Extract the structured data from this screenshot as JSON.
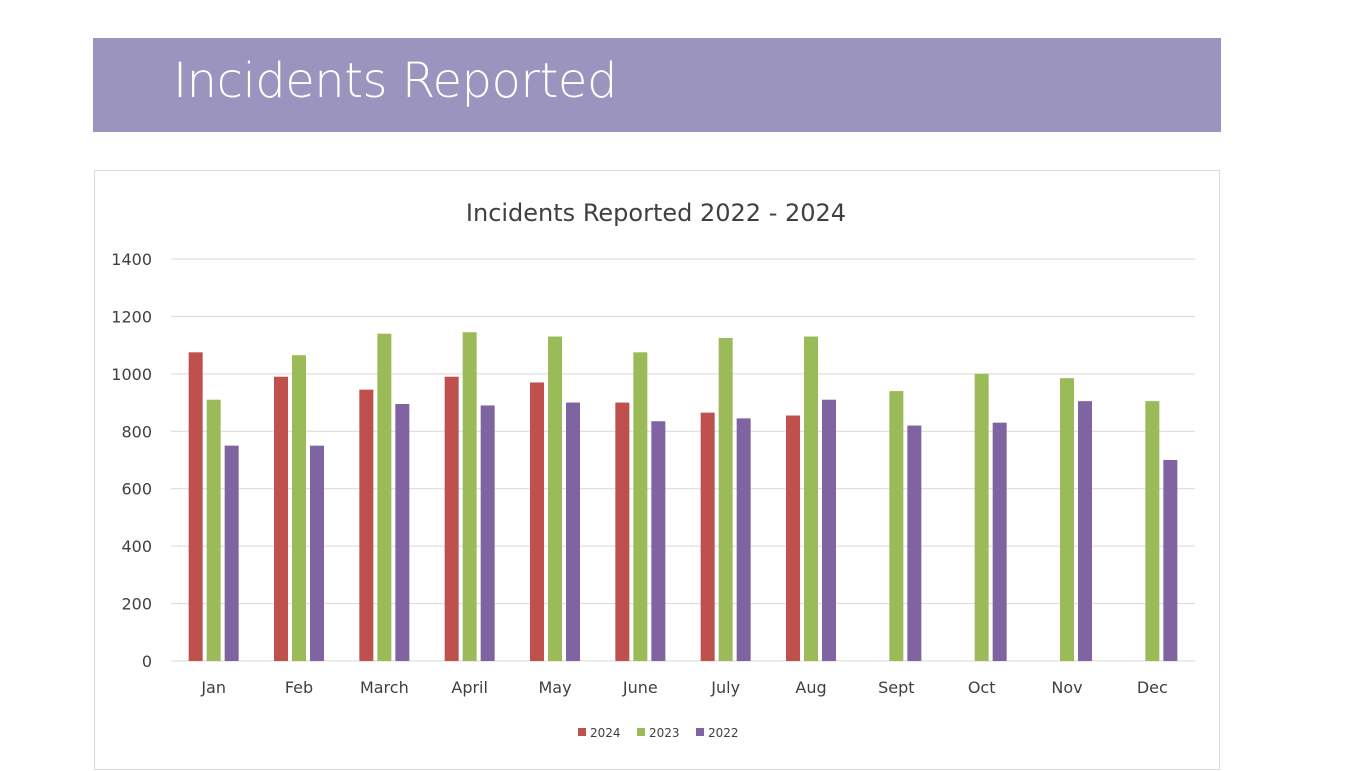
{
  "header": {
    "title": "Incidents Reported"
  },
  "colors": {
    "banner": "#9b94bf",
    "s2024": "#c0504d",
    "s2023": "#9bbb59",
    "s2022": "#8064a2",
    "grid": "#d9d9d9"
  },
  "chart_data": {
    "type": "bar",
    "title": "Incidents Reported 2022 - 2024",
    "xlabel": "",
    "ylabel": "",
    "ylim": [
      0,
      1400
    ],
    "yticks": [
      0,
      200,
      400,
      600,
      800,
      1000,
      1200,
      1400
    ],
    "grid": true,
    "legend_position": "bottom",
    "categories": [
      "Jan",
      "Feb",
      "March",
      "April",
      "May",
      "June",
      "July",
      "Aug",
      "Sept",
      "Oct",
      "Nov",
      "Dec"
    ],
    "series": [
      {
        "name": "2024",
        "color": "#c0504d",
        "values": [
          1075,
          990,
          945,
          990,
          970,
          900,
          865,
          855,
          null,
          null,
          null,
          null
        ]
      },
      {
        "name": "2023",
        "color": "#9bbb59",
        "values": [
          910,
          1065,
          1140,
          1145,
          1130,
          1075,
          1125,
          1130,
          940,
          1000,
          985,
          905
        ]
      },
      {
        "name": "2022",
        "color": "#8064a2",
        "values": [
          750,
          750,
          895,
          890,
          900,
          835,
          845,
          910,
          820,
          830,
          905,
          700
        ]
      }
    ]
  }
}
